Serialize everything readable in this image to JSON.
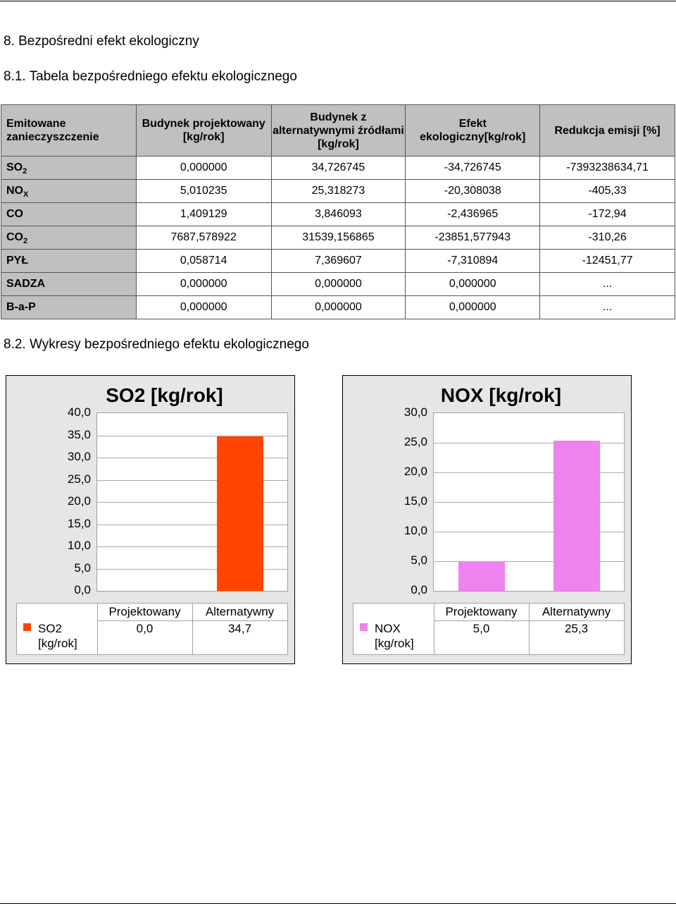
{
  "headings": {
    "section": "8. Bezpośredni efekt ekologiczny",
    "table_title": "8.1. Tabela bezpośredniego efektu ekologicznego",
    "charts_title": "8.2. Wykresy bezpośredniego efektu ekologicznego"
  },
  "table": {
    "headers": [
      "Emitowane zanieczyszczenie",
      "Budynek projektowany [kg/rok]",
      "Budynek z alternatywnymi źródłami [kg/rok]",
      "Efekt ekologiczny[kg/rok]",
      "Redukcja emisji [%]"
    ],
    "rows": [
      {
        "label": "SO",
        "sub": "2",
        "values": [
          "0,000000",
          "34,726745",
          "-34,726745",
          "-7393238634,71"
        ]
      },
      {
        "label": "NO",
        "sub": "X",
        "values": [
          "5,010235",
          "25,318273",
          "-20,308038",
          "-405,33"
        ]
      },
      {
        "label": "CO",
        "sub": "",
        "values": [
          "1,409129",
          "3,846093",
          "-2,436965",
          "-172,94"
        ]
      },
      {
        "label": "CO",
        "sub": "2",
        "values": [
          "7687,578922",
          "31539,156865",
          "-23851,577943",
          "-310,26"
        ]
      },
      {
        "label": "PYŁ",
        "sub": "",
        "values": [
          "0,058714",
          "7,369607",
          "-7,310894",
          "-12451,77"
        ]
      },
      {
        "label": "SADZA",
        "sub": "",
        "values": [
          "0,000000",
          "0,000000",
          "0,000000",
          "..."
        ]
      },
      {
        "label": "B-a-P",
        "sub": "",
        "values": [
          "0,000000",
          "0,000000",
          "0,000000",
          "..."
        ]
      }
    ]
  },
  "chart_data": [
    {
      "type": "bar",
      "title": "SO2 [kg/rok]",
      "categories": [
        "Projektowany",
        "Alternatywny"
      ],
      "series": [
        {
          "name": "SO2 [kg/rok]",
          "values": [
            0.0,
            34.7
          ],
          "labels": [
            "0,0",
            "34,7"
          ],
          "color": "#ff4500"
        }
      ],
      "ylim": [
        0,
        40
      ],
      "ticks": [
        "0,0",
        "5,0",
        "10,0",
        "15,0",
        "20,0",
        "25,0",
        "30,0",
        "35,0",
        "40,0"
      ],
      "legend": {
        "line1": "SO2",
        "line2": "[kg/rok]"
      },
      "grid": true,
      "data_table": true
    },
    {
      "type": "bar",
      "title": "NOX [kg/rok]",
      "categories": [
        "Projektowany",
        "Alternatywny"
      ],
      "series": [
        {
          "name": "NOX [kg/rok]",
          "values": [
            5.0,
            25.3
          ],
          "labels": [
            "5,0",
            "25,3"
          ],
          "color": "#ee82ee"
        }
      ],
      "ylim": [
        0,
        30
      ],
      "ticks": [
        "0,0",
        "5,0",
        "10,0",
        "15,0",
        "20,0",
        "25,0",
        "30,0"
      ],
      "legend": {
        "line1": "NOX",
        "line2": "[kg/rok]"
      },
      "grid": true,
      "data_table": true
    }
  ]
}
